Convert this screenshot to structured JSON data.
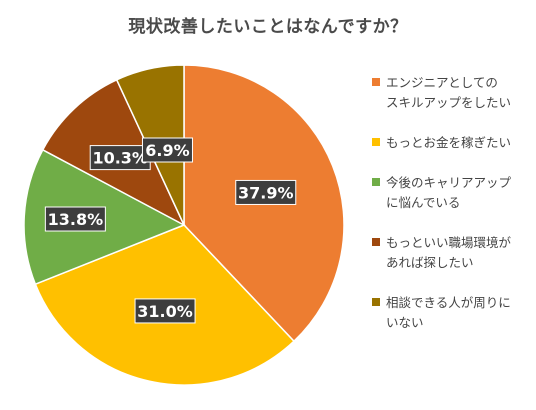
{
  "chart_data": {
    "type": "pie",
    "title": "現状改善したいことはなんですか？",
    "slices": [
      {
        "label": "エンジニアとしてのスキルアップをしたい",
        "value": 37.9,
        "value_label": "37.9%",
        "color": "#ED7D31"
      },
      {
        "label": "もっとお金を稼ぎたい",
        "value": 31.0,
        "value_label": "31.0%",
        "color": "#FFC000"
      },
      {
        "label": "今後のキャリアアップに悩んでいる",
        "value": 13.8,
        "value_label": "13.8%",
        "color": "#70AD47"
      },
      {
        "label": "もっといい職場環境があれば探したい",
        "value": 10.3,
        "value_label": "10.3%",
        "color": "#9E480E"
      },
      {
        "label": "相談できる人が周りにいない",
        "value": 6.9,
        "value_label": "6.9%",
        "color": "#997300"
      }
    ],
    "legend_position": "right"
  },
  "legend_display": [
    "エンジニアとしての\nスキルアップをしたい",
    "もっとお金を稼ぎたい",
    "今後のキャリアアップ\nに悩んでいる",
    "もっといい職場環境が\nあれば探したい",
    "相談できる人が周りに\nいない"
  ]
}
